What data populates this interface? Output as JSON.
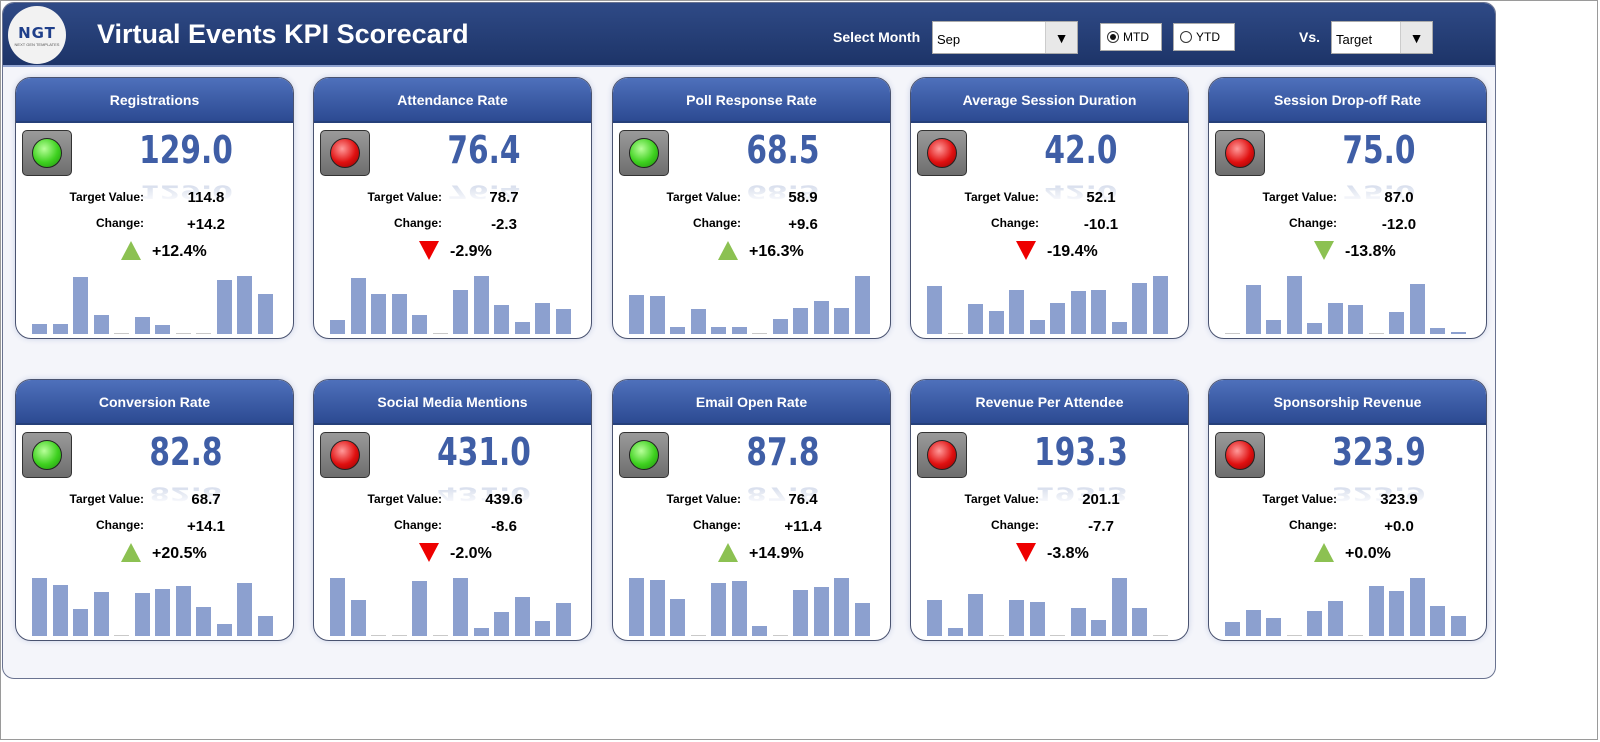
{
  "header": {
    "logo_text": "NGT",
    "logo_subtext": "NEXT GEN TEMPLATES",
    "title": "Virtual Events KPI Scorecard",
    "month_label": "Select Month",
    "month_value": "Sep",
    "mtd_label": "MTD",
    "ytd_label": "YTD",
    "period_selected": "MTD",
    "vs_label": "Vs.",
    "vs_value": "Target"
  },
  "labels": {
    "target": "Target Value:",
    "change": "Change:"
  },
  "colors": {
    "good": "#8cc152",
    "bad": "#e00000",
    "bar": "#8ca0cf",
    "header": "#2c4a92"
  },
  "cards": [
    {
      "title": "Registrations",
      "value": "129.0",
      "target": "114.8",
      "change": "+14.2",
      "pct": "+12.4%",
      "status": "green",
      "arrow": "up",
      "arrow_color": "green",
      "bars": [
        10,
        10,
        55,
        18,
        0,
        16,
        9,
        0,
        0,
        52,
        56,
        39
      ]
    },
    {
      "title": "Attendance Rate",
      "value": "76.4",
      "target": "78.7",
      "change": "-2.3",
      "pct": "-2.9%",
      "status": "red",
      "arrow": "down",
      "arrow_color": "red",
      "bars": [
        14,
        56,
        40,
        40,
        19,
        0,
        44,
        58,
        29,
        12,
        31,
        25
      ]
    },
    {
      "title": "Poll Response Rate",
      "value": "68.5",
      "target": "58.9",
      "change": "+9.6",
      "pct": "+16.3%",
      "status": "green",
      "arrow": "up",
      "arrow_color": "green",
      "bars": [
        40,
        39,
        7,
        25,
        7,
        7,
        0,
        15,
        26,
        34,
        26,
        59
      ]
    },
    {
      "title": "Average Session Duration",
      "value": "42.0",
      "target": "52.1",
      "change": "-10.1",
      "pct": "-19.4%",
      "status": "red",
      "arrow": "down",
      "arrow_color": "red",
      "bars": [
        46,
        0,
        28,
        22,
        42,
        13,
        29,
        41,
        42,
        11,
        48,
        55
      ]
    },
    {
      "title": "Session Drop-off Rate",
      "value": "75.0",
      "target": "87.0",
      "change": "-12.0",
      "pct": "-13.8%",
      "status": "red",
      "arrow": "down",
      "arrow_color": "green",
      "bars": [
        0,
        47,
        14,
        56,
        11,
        30,
        28,
        0,
        21,
        48,
        6,
        2
      ]
    },
    {
      "title": "Conversion Rate",
      "value": "82.8",
      "target": "68.7",
      "change": "+14.1",
      "pct": "+20.5%",
      "status": "green",
      "arrow": "up",
      "arrow_color": "green",
      "bars": [
        57,
        50,
        27,
        43,
        0,
        42,
        46,
        49,
        29,
        12,
        52,
        20
      ]
    },
    {
      "title": "Social Media Mentions",
      "value": "431.0",
      "target": "439.6",
      "change": "-8.6",
      "pct": "-2.0%",
      "status": "red",
      "arrow": "down",
      "arrow_color": "red",
      "bars": [
        58,
        36,
        0,
        0,
        55,
        0,
        58,
        8,
        24,
        39,
        15,
        33
      ]
    },
    {
      "title": "Email Open Rate",
      "value": "87.8",
      "target": "76.4",
      "change": "+11.4",
      "pct": "+14.9%",
      "status": "green",
      "arrow": "up",
      "arrow_color": "green",
      "bars": [
        57,
        55,
        36,
        0,
        52,
        54,
        10,
        0,
        45,
        48,
        57,
        32
      ]
    },
    {
      "title": "Revenue Per Attendee",
      "value": "193.3",
      "target": "201.1",
      "change": "-7.7",
      "pct": "-3.8%",
      "status": "red",
      "arrow": "down",
      "arrow_color": "red",
      "bars": [
        36,
        8,
        42,
        0,
        36,
        34,
        0,
        28,
        16,
        58,
        28,
        0
      ]
    },
    {
      "title": "Sponsorship Revenue",
      "value": "323.9",
      "target": "323.9",
      "change": "+0.0",
      "pct": "+0.0%",
      "status": "red",
      "arrow": "up",
      "arrow_color": "green",
      "bars": [
        14,
        26,
        18,
        0,
        25,
        35,
        0,
        50,
        45,
        58,
        30,
        20
      ]
    }
  ]
}
